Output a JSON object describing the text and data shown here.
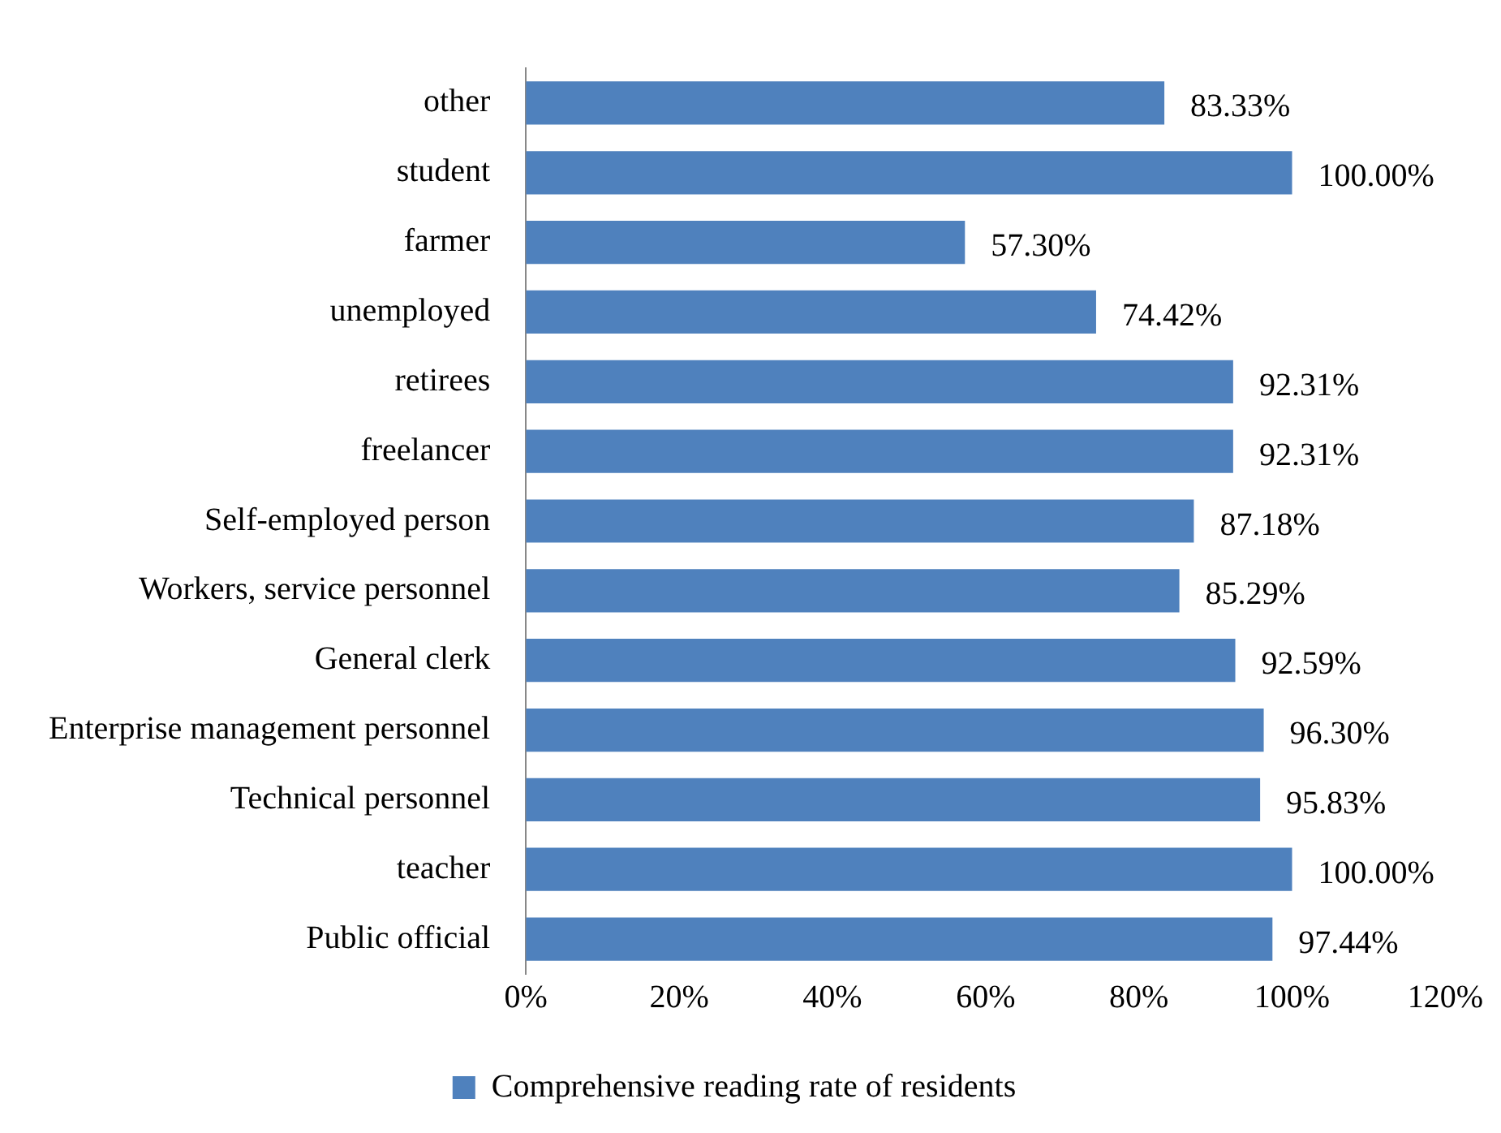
{
  "chart_data": {
    "type": "bar",
    "orientation": "horizontal",
    "categories": [
      "other",
      "student",
      "farmer",
      "unemployed",
      "retirees",
      "freelancer",
      "Self-employed person",
      "Workers, service personnel",
      "General clerk",
      "Enterprise management personnel",
      "Technical personnel",
      "teacher",
      "Public official"
    ],
    "series": [
      {
        "name": "Comprehensive reading rate of residents",
        "color": "#4f81bd",
        "values": [
          83.33,
          100,
          57.3,
          74.42,
          92.31,
          92.31,
          87.18,
          85.29,
          92.59,
          96.3,
          95.83,
          100,
          97.44
        ],
        "value_labels": [
          "83.33%",
          "100.00%",
          "57.30%",
          "74.42%",
          "92.31%",
          "92.31%",
          "87.18%",
          "85.29%",
          "92.59%",
          "96.30%",
          "95.83%",
          "100.00%",
          "97.44%"
        ]
      }
    ],
    "xlim": [
      0,
      120
    ],
    "xticks": [
      {
        "value": 0,
        "label": "0%"
      },
      {
        "value": 20,
        "label": "20%"
      },
      {
        "value": 40,
        "label": "40%"
      },
      {
        "value": 60,
        "label": "60%"
      },
      {
        "value": 80,
        "label": "80%"
      },
      {
        "value": 100,
        "label": "100%"
      },
      {
        "value": 120,
        "label": "120%"
      }
    ],
    "grid": false,
    "legend": "bottom"
  }
}
